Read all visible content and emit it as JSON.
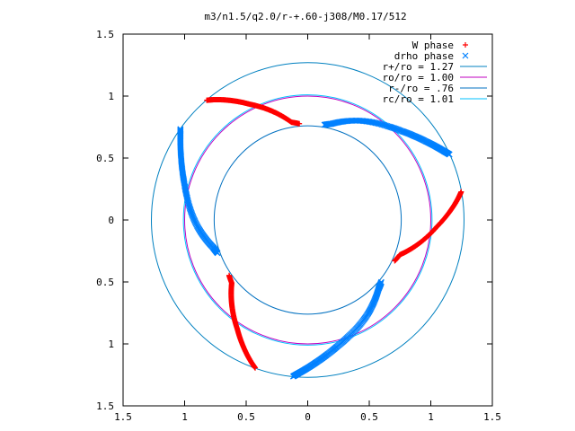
{
  "chart_data": {
    "type": "scatter",
    "title": "m3/n1.5/q2.0/r-+.60-j308/M0.17/512",
    "xlabel": "",
    "ylabel": "",
    "xlim": [
      -1.5,
      1.5
    ],
    "ylim": [
      -1.5,
      1.5
    ],
    "x_tick_values": [
      -1.5,
      -1,
      -0.5,
      0,
      0.5,
      1,
      1.5
    ],
    "x_tick_labels": [
      "1.5",
      "1",
      "0.5",
      "0",
      "0.5",
      "1",
      "1.5"
    ],
    "y_tick_values": [
      1.5,
      1,
      0.5,
      0,
      -0.5,
      -1,
      -1.5
    ],
    "y_tick_labels": [
      "1.5",
      "1",
      "0.5",
      "0",
      "0.5",
      "1",
      "1.5"
    ],
    "grid": false,
    "legend_position": "top-right",
    "series": [
      {
        "name": "W phase",
        "kind": "points",
        "marker": "+",
        "color": "#ff0000",
        "arms": [
          {
            "r": [
              0.78,
              0.8,
              0.85,
              0.9,
              0.95,
              1.0,
              1.05,
              1.1,
              1.15,
              1.2,
              1.24,
              1.27
            ],
            "theta_deg": [
              95.0,
              99.5,
              103.0,
              106.5,
              110.0,
              113.5,
              117.0,
              120.0,
              123.0,
              126.0,
              128.5,
              130.5
            ]
          },
          {
            "r": [
              0.78,
              0.8,
              0.85,
              0.9,
              0.95,
              1.0,
              1.05,
              1.1,
              1.15,
              1.2,
              1.24,
              1.27
            ],
            "theta_deg": [
              215.0,
              219.5,
              223.0,
              226.5,
              230.0,
              233.5,
              237.0,
              240.0,
              243.0,
              246.0,
              248.5,
              250.5
            ]
          },
          {
            "r": [
              0.78,
              0.8,
              0.85,
              0.9,
              0.95,
              1.0,
              1.05,
              1.1,
              1.15,
              1.2,
              1.24,
              1.27
            ],
            "theta_deg": [
              335.0,
              339.5,
              343.0,
              346.5,
              350.0,
              353.5,
              357.0,
              360.0,
              363.0,
              366.0,
              368.5,
              370.5
            ]
          }
        ]
      },
      {
        "name": "drho phase",
        "kind": "points",
        "marker": "x",
        "color": "#0080ff",
        "arms": [
          {
            "r": [
              0.78,
              0.8,
              0.85,
              0.9,
              0.95,
              1.0,
              1.05,
              1.1,
              1.15,
              1.2,
              1.24,
              1.27
            ],
            "theta_deg": [
              80.0,
              76.0,
              69.5,
              63.0,
              56.0,
              49.0,
              43.0,
              38.0,
              33.5,
              29.5,
              26.5,
              24.5
            ]
          },
          {
            "r": [
              0.78,
              0.8,
              0.85,
              0.9,
              0.95,
              1.0,
              1.05,
              1.1,
              1.15,
              1.2,
              1.24,
              1.27
            ],
            "theta_deg": [
              200.0,
              196.0,
              189.5,
              183.0,
              176.0,
              169.0,
              163.0,
              158.0,
              153.5,
              149.5,
              146.5,
              144.5
            ]
          },
          {
            "r": [
              0.78,
              0.8,
              0.85,
              0.9,
              0.95,
              1.0,
              1.05,
              1.1,
              1.15,
              1.2,
              1.24,
              1.27
            ],
            "theta_deg": [
              320.0,
              316.0,
              309.5,
              303.0,
              296.0,
              289.0,
              283.0,
              278.0,
              273.5,
              269.5,
              266.5,
              264.5
            ]
          }
        ]
      },
      {
        "name": "r+/ro = 1.27",
        "kind": "circle",
        "radius": 1.27,
        "color": "#0080c0"
      },
      {
        "name": "ro/ro = 1.00",
        "kind": "circle",
        "radius": 1.0,
        "color": "#c000c0"
      },
      {
        "name": "r-/ro = .76",
        "kind": "circle",
        "radius": 0.76,
        "color": "#0070c0"
      },
      {
        "name": "rc/ro = 1.01",
        "kind": "circle",
        "radius": 1.01,
        "color": "#00c0ff"
      }
    ]
  }
}
